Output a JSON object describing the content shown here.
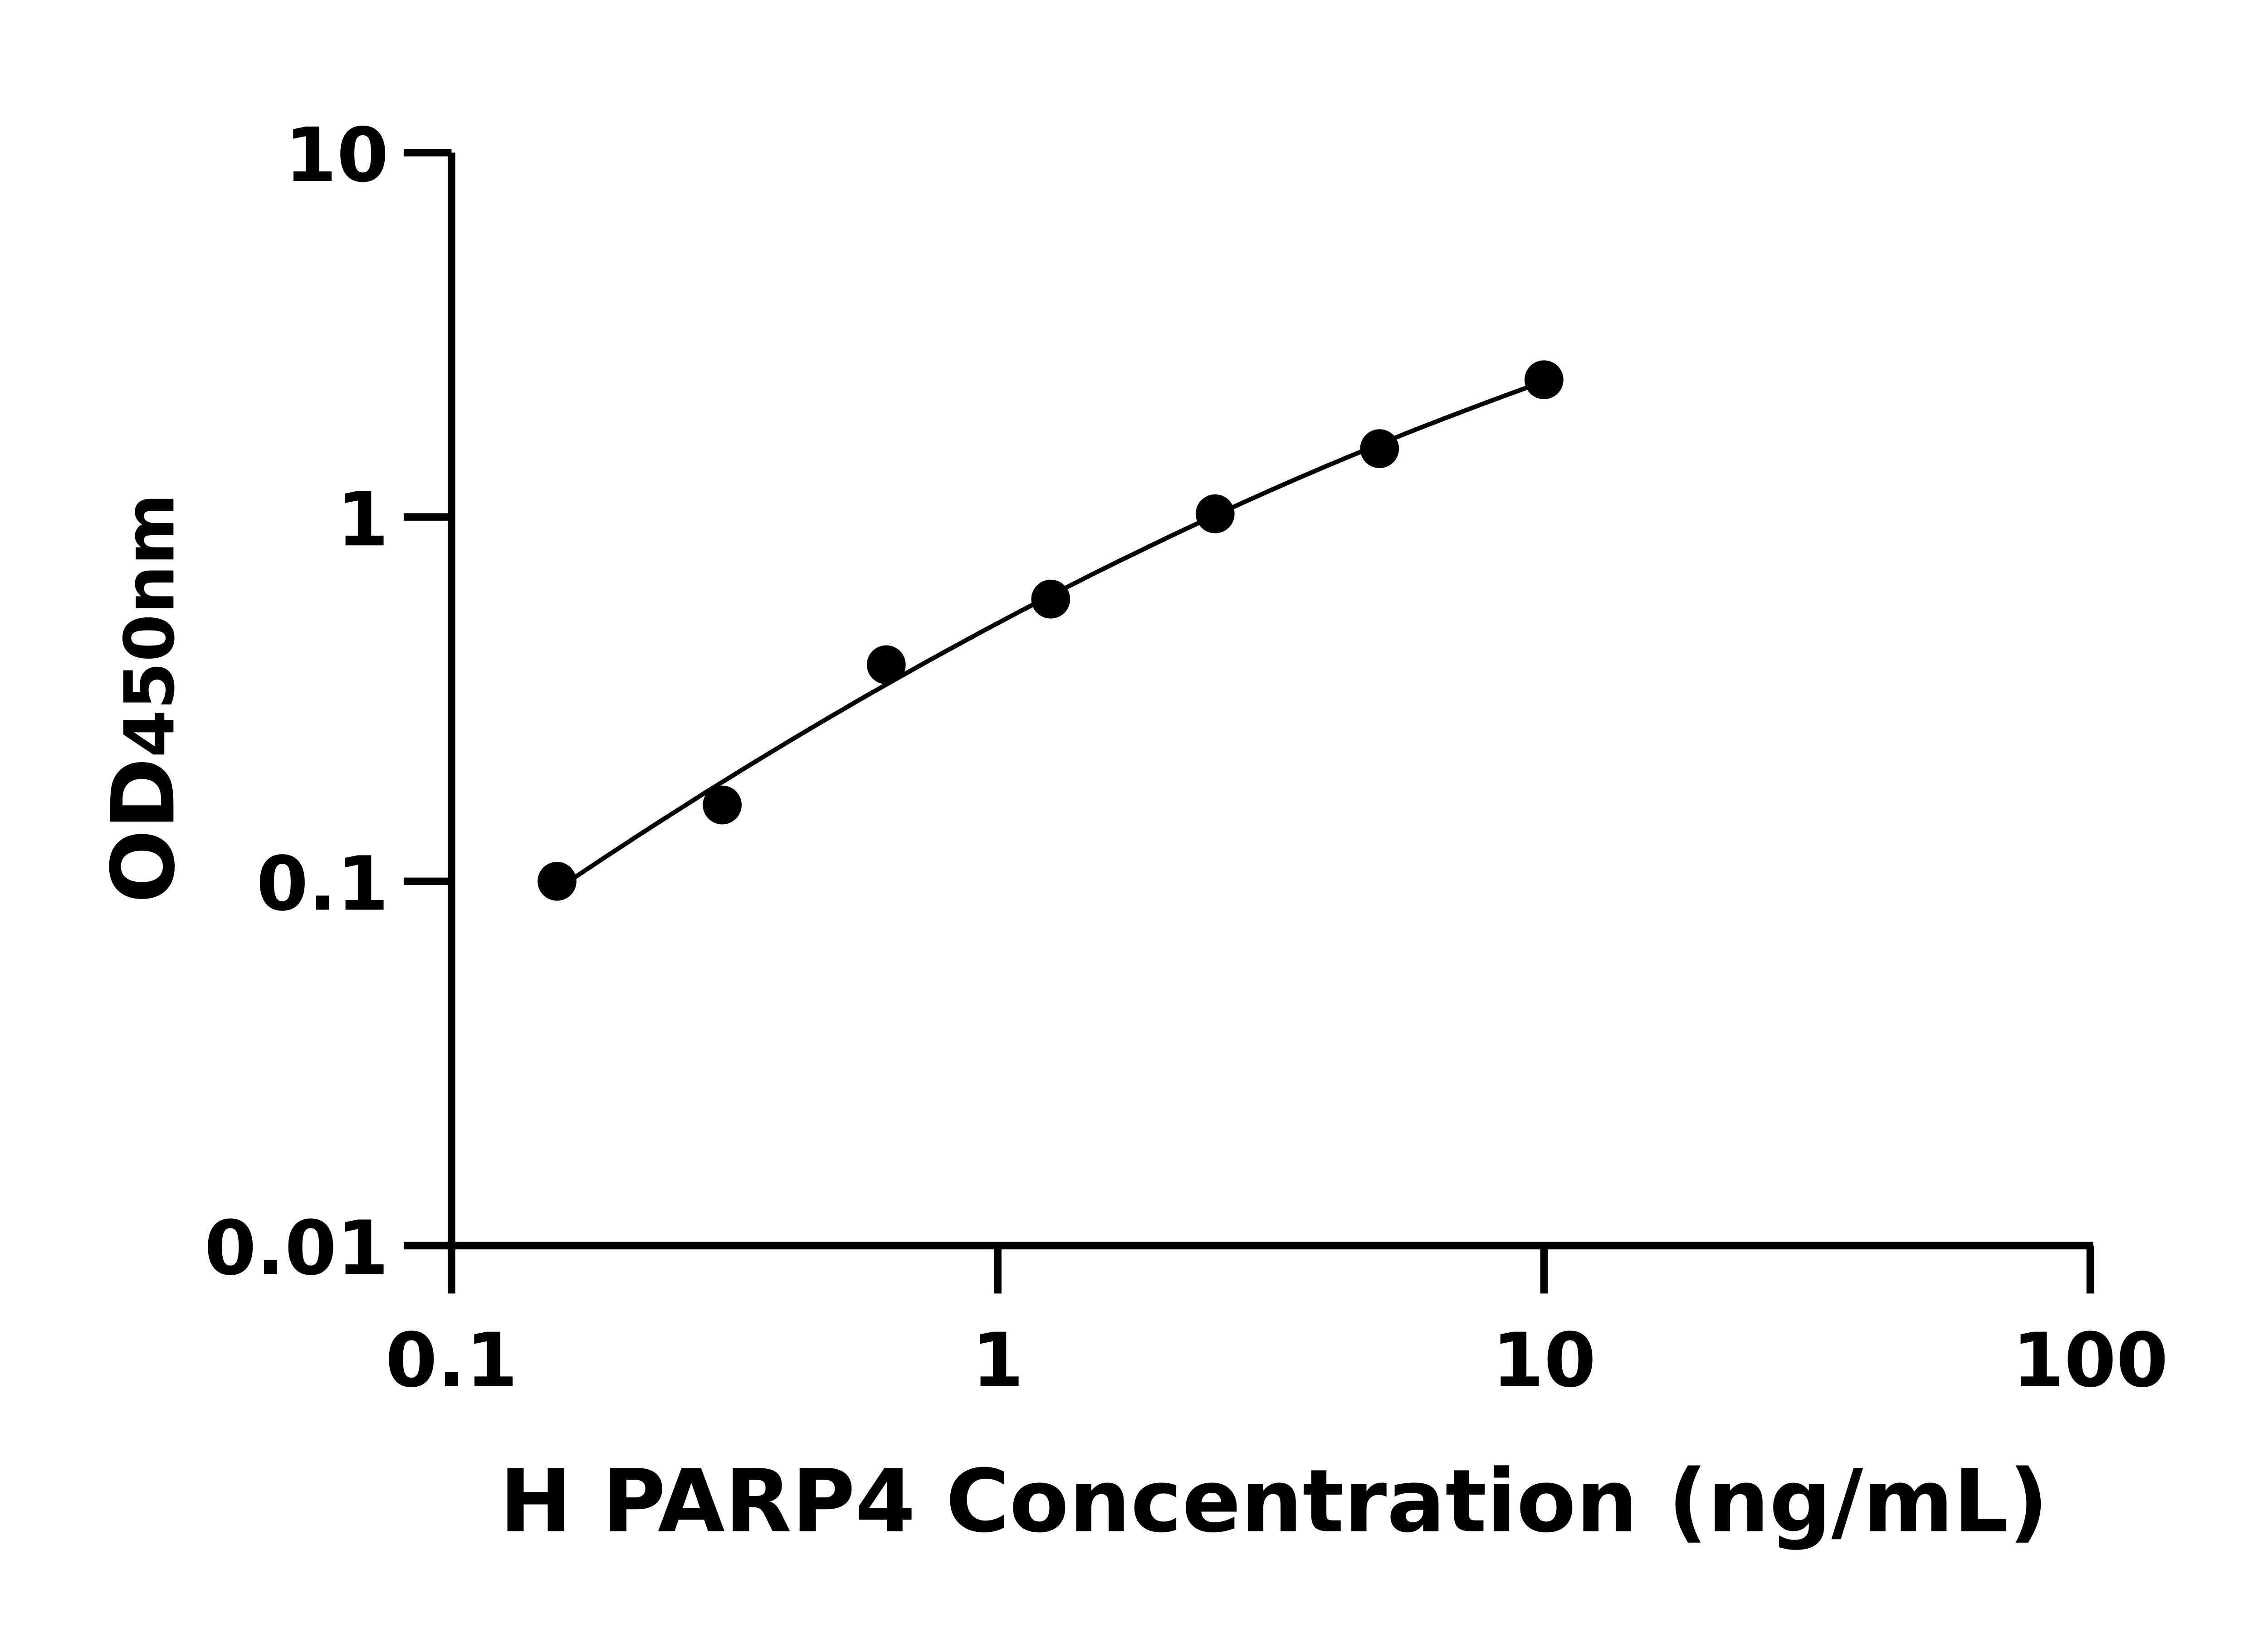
{
  "chart_data": {
    "type": "scatter",
    "title": "",
    "xlabel": "H PARP4 Concentration (ng/mL)",
    "ylabel_main": "OD",
    "ylabel_sub": "450nm",
    "x_scale": "log",
    "y_scale": "log",
    "xlim": [
      0.1,
      100
    ],
    "ylim": [
      0.01,
      10
    ],
    "x_ticks": [
      0.1,
      1,
      10,
      100
    ],
    "x_tick_labels": [
      "0.1",
      "1",
      "10",
      "100"
    ],
    "y_ticks": [
      0.01,
      0.1,
      1,
      10
    ],
    "y_tick_labels": [
      "0.01",
      "0.1",
      "1",
      "10"
    ],
    "grid": false,
    "fit_curve": true,
    "color": "#000000",
    "points": [
      {
        "x": 0.156,
        "y": 0.1
      },
      {
        "x": 0.313,
        "y": 0.162
      },
      {
        "x": 0.625,
        "y": 0.393
      },
      {
        "x": 1.25,
        "y": 0.595
      },
      {
        "x": 2.5,
        "y": 1.02
      },
      {
        "x": 5,
        "y": 1.54
      },
      {
        "x": 10,
        "y": 2.38
      }
    ]
  }
}
